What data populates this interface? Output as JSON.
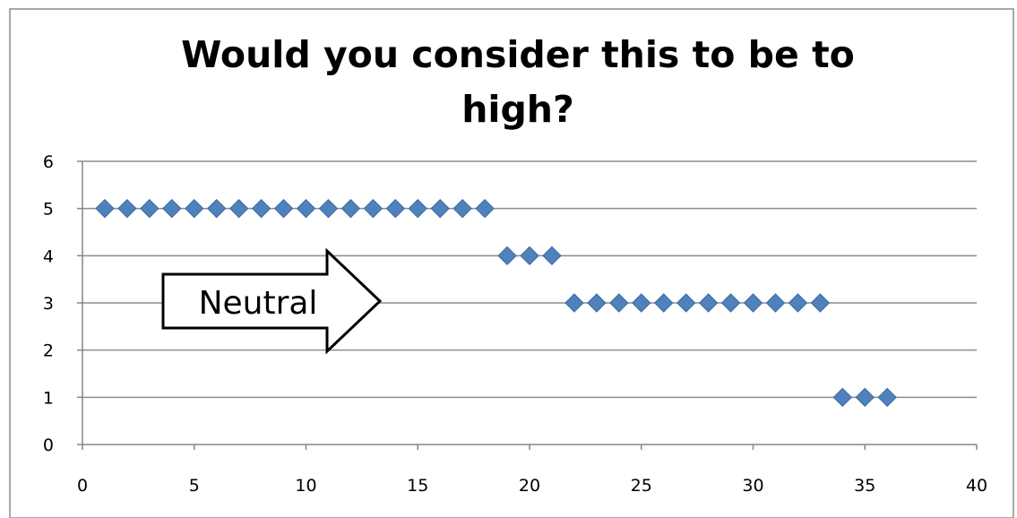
{
  "chart_data": {
    "type": "scatter",
    "title_lines": [
      "Would you consider this to be to",
      "high?"
    ],
    "xlabel": "",
    "ylabel": "",
    "xlim": [
      0,
      40
    ],
    "ylim": [
      0,
      6
    ],
    "x_ticks": [
      0,
      5,
      10,
      15,
      20,
      25,
      30,
      35,
      40
    ],
    "y_ticks": [
      0,
      1,
      2,
      3,
      4,
      5,
      6
    ],
    "grid": "horizontal",
    "marker": "diamond",
    "colors": {
      "marker": "#4F81BD",
      "marker_edge": "#3A6A9E",
      "gridline": "#8C8C8C",
      "axis": "#868686",
      "frame": "#8C8C8C"
    },
    "points": [
      {
        "x": 1,
        "y": 5
      },
      {
        "x": 2,
        "y": 5
      },
      {
        "x": 3,
        "y": 5
      },
      {
        "x": 4,
        "y": 5
      },
      {
        "x": 5,
        "y": 5
      },
      {
        "x": 6,
        "y": 5
      },
      {
        "x": 7,
        "y": 5
      },
      {
        "x": 8,
        "y": 5
      },
      {
        "x": 9,
        "y": 5
      },
      {
        "x": 10,
        "y": 5
      },
      {
        "x": 11,
        "y": 5
      },
      {
        "x": 12,
        "y": 5
      },
      {
        "x": 13,
        "y": 5
      },
      {
        "x": 14,
        "y": 5
      },
      {
        "x": 15,
        "y": 5
      },
      {
        "x": 16,
        "y": 5
      },
      {
        "x": 17,
        "y": 5
      },
      {
        "x": 18,
        "y": 5
      },
      {
        "x": 19,
        "y": 4
      },
      {
        "x": 20,
        "y": 4
      },
      {
        "x": 21,
        "y": 4
      },
      {
        "x": 22,
        "y": 3
      },
      {
        "x": 23,
        "y": 3
      },
      {
        "x": 24,
        "y": 3
      },
      {
        "x": 25,
        "y": 3
      },
      {
        "x": 26,
        "y": 3
      },
      {
        "x": 27,
        "y": 3
      },
      {
        "x": 28,
        "y": 3
      },
      {
        "x": 29,
        "y": 3
      },
      {
        "x": 30,
        "y": 3
      },
      {
        "x": 31,
        "y": 3
      },
      {
        "x": 32,
        "y": 3
      },
      {
        "x": 33,
        "y": 3
      },
      {
        "x": 34,
        "y": 1
      },
      {
        "x": 35,
        "y": 1
      },
      {
        "x": 36,
        "y": 1
      }
    ],
    "annotation": {
      "text": "Neutral",
      "shape": "right-arrow",
      "points_to": {
        "x": 13.3,
        "y": 3
      }
    }
  }
}
